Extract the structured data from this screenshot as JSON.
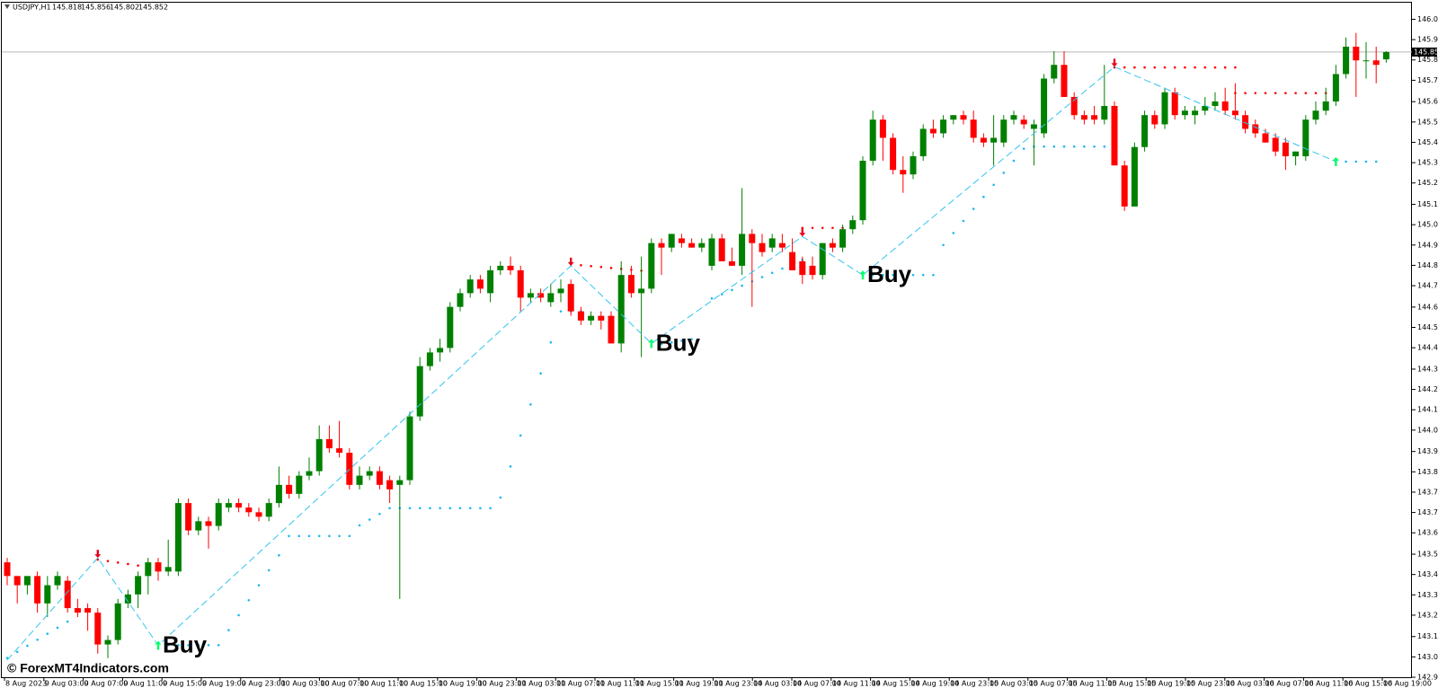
{
  "chart_data": {
    "type": "candlestick",
    "header": {
      "symbol": "USDJPY,H1",
      "ohlc": [
        145.818,
        145.856,
        145.802,
        145.852
      ]
    },
    "watermark": "© ForexMT4Indicators.com",
    "bull_color": "#008000",
    "bear_color": "#ff0000",
    "ylim": [
      142.93,
      146.07
    ],
    "yticks": [
      146.005,
      {
        "value": 145.91,
        "label": "145.910"
      },
      145.815,
      {
        "value": 145.72,
        "label": "145.720"
      },
      {
        "value": 145.62,
        "label": "145.620"
      },
      145.525,
      {
        "value": 145.43,
        "label": "145.430"
      },
      145.335,
      {
        "value": 145.24,
        "label": "145.240"
      },
      {
        "value": 145.14,
        "label": "145.140"
      },
      145.045,
      {
        "value": 144.95,
        "label": "144.950"
      },
      144.855,
      {
        "value": 144.76,
        "label": "144.760"
      },
      {
        "value": 144.66,
        "label": "144.660"
      },
      144.565,
      {
        "value": 144.47,
        "label": "144.470"
      },
      {
        "value": 144.37,
        "label": "144.370"
      },
      144.275,
      {
        "value": 144.18,
        "label": "144.180"
      },
      144.085,
      143.985,
      {
        "value": 143.89,
        "label": "143.890"
      },
      143.795,
      {
        "value": 143.7,
        "label": "143.700"
      },
      143.605,
      143.505,
      {
        "value": 143.41,
        "label": "143.410"
      },
      143.315,
      {
        "value": 143.22,
        "label": "143.220"
      },
      {
        "value": 143.12,
        "label": "143.120"
      },
      143.025,
      {
        "value": 142.93,
        "label": "142.930"
      }
    ],
    "current_price": 145.852,
    "x_labels": [
      "8 Aug 2023",
      "9 Aug 03:00",
      "9 Aug 07:00",
      "9 Aug 11:00",
      "9 Aug 15:00",
      "9 Aug 19:00",
      "9 Aug 23:00",
      "10 Aug 03:00",
      "10 Aug 07:00",
      "10 Aug 11:00",
      "10 Aug 15:00",
      "10 Aug 19:00",
      "10 Aug 23:00",
      "11 Aug 03:00",
      "11 Aug 07:00",
      "11 Aug 11:00",
      "11 Aug 15:00",
      "11 Aug 19:00",
      "11 Aug 23:00",
      "14 Aug 03:00",
      "14 Aug 07:00",
      "14 Aug 11:00",
      "14 Aug 15:00",
      "14 Aug 19:00",
      "14 Aug 23:00",
      "15 Aug 03:00",
      "15 Aug 07:00",
      "15 Aug 11:00",
      "15 Aug 15:00",
      "15 Aug 19:00",
      "15 Aug 23:00",
      "16 Aug 03:00",
      "16 Aug 07:00",
      "16 Aug 11:00",
      "16 Aug 15:00",
      "16 Aug 19:00"
    ],
    "open": [
      143.467,
      143.403,
      143.36,
      143.403,
      143.275,
      143.36,
      143.381,
      143.253,
      143.253,
      143.232,
      143.083,
      143.104,
      143.275,
      143.317,
      143.403,
      143.467,
      143.424,
      143.424,
      143.744,
      143.616,
      143.659,
      143.637,
      143.723,
      143.744,
      143.723,
      143.701,
      143.68,
      143.744,
      143.829,
      143.787,
      143.872,
      143.893,
      144.043,
      144.0,
      143.979,
      143.829,
      143.872,
      143.893,
      143.851,
      143.829,
      143.851,
      144.149,
      144.384,
      144.448,
      144.469,
      144.661,
      144.725,
      144.789,
      144.725,
      144.832,
      144.853,
      144.832,
      144.704,
      144.725,
      144.683,
      144.725,
      144.768,
      144.64,
      144.597,
      144.619,
      144.619,
      144.49,
      144.81,
      144.725,
      144.746,
      144.959,
      144.938,
      144.981,
      144.959,
      144.938,
      144.853,
      144.981,
      144.874,
      144.853,
      145.002,
      144.959,
      144.938,
      144.959,
      144.917,
      144.874,
      144.853,
      144.81,
      144.959,
      144.938,
      145.024,
      145.066,
      145.344,
      145.536,
      145.451,
      145.301,
      145.28,
      145.365,
      145.493,
      145.472,
      145.536,
      145.557,
      145.536,
      145.451,
      145.429,
      145.429,
      145.536,
      145.536,
      145.493,
      145.472,
      145.728,
      145.792,
      145.642,
      145.557,
      145.557,
      145.536,
      145.6,
      145.322,
      145.13,
      145.408,
      145.557,
      145.514,
      145.664,
      145.557,
      145.557,
      145.578,
      145.6,
      145.621,
      145.578,
      145.557,
      145.514,
      145.472,
      145.451,
      145.429,
      145.365,
      145.365,
      145.536,
      145.578,
      145.621,
      145.749,
      145.877,
      145.813,
      145.813,
      145.818
    ],
    "high": [
      143.488,
      143.403,
      143.403,
      143.424,
      143.403,
      143.424,
      143.403,
      143.296,
      143.275,
      143.253,
      143.125,
      143.296,
      143.339,
      143.424,
      143.488,
      143.488,
      143.573,
      143.765,
      143.765,
      143.68,
      143.68,
      143.765,
      143.765,
      143.765,
      143.744,
      143.723,
      143.765,
      143.915,
      143.872,
      143.893,
      143.957,
      144.107,
      144.107,
      144.128,
      144.0,
      143.915,
      143.915,
      143.915,
      143.872,
      143.872,
      144.171,
      144.426,
      144.469,
      144.512,
      144.683,
      144.746,
      144.81,
      144.81,
      144.853,
      144.874,
      144.896,
      144.853,
      144.746,
      144.746,
      144.768,
      144.789,
      144.789,
      144.661,
      144.64,
      144.64,
      144.64,
      144.874,
      144.853,
      144.896,
      144.981,
      144.981,
      145.002,
      145.002,
      144.981,
      144.981,
      145.002,
      145.002,
      144.938,
      145.216,
      145.024,
      145.002,
      145.002,
      145.002,
      144.981,
      144.896,
      144.896,
      144.959,
      144.981,
      145.045,
      145.088,
      145.365,
      145.578,
      145.557,
      145.472,
      145.365,
      145.387,
      145.514,
      145.536,
      145.557,
      145.557,
      145.578,
      145.578,
      145.472,
      145.557,
      145.557,
      145.578,
      145.557,
      145.536,
      145.749,
      145.856,
      145.856,
      145.664,
      145.578,
      145.6,
      145.792,
      145.621,
      145.344,
      145.429,
      145.578,
      145.578,
      145.685,
      145.685,
      145.6,
      145.6,
      145.642,
      145.664,
      145.685,
      145.706,
      145.578,
      145.536,
      145.493,
      145.472,
      145.451,
      145.387,
      145.557,
      145.621,
      145.685,
      145.792,
      145.92,
      145.941,
      145.898,
      145.877,
      145.856
    ],
    "low": [
      143.36,
      143.275,
      143.317,
      143.232,
      143.211,
      143.339,
      143.232,
      143.211,
      143.147,
      143.04,
      143.019,
      143.083,
      143.253,
      143.253,
      143.317,
      143.381,
      143.403,
      143.403,
      143.594,
      143.594,
      143.531,
      143.616,
      143.701,
      143.701,
      143.68,
      143.659,
      143.659,
      143.723,
      143.765,
      143.765,
      143.851,
      143.872,
      143.979,
      143.957,
      143.808,
      143.808,
      143.851,
      143.808,
      143.744,
      143.296,
      143.829,
      144.128,
      144.363,
      144.405,
      144.448,
      144.64,
      144.704,
      144.725,
      144.683,
      144.81,
      144.81,
      144.64,
      144.683,
      144.683,
      144.661,
      144.683,
      144.619,
      144.576,
      144.576,
      144.555,
      144.49,
      144.448,
      144.704,
      144.426,
      144.725,
      144.81,
      144.917,
      144.938,
      144.938,
      144.917,
      144.832,
      144.874,
      144.853,
      144.81,
      144.661,
      144.896,
      144.917,
      144.917,
      144.832,
      144.768,
      144.789,
      144.789,
      144.917,
      144.917,
      145.002,
      145.045,
      145.322,
      145.344,
      145.28,
      145.194,
      145.258,
      145.344,
      145.451,
      145.451,
      145.514,
      145.514,
      145.429,
      145.408,
      145.322,
      145.408,
      145.514,
      145.493,
      145.322,
      145.451,
      145.706,
      145.642,
      145.536,
      145.514,
      145.514,
      145.514,
      145.322,
      145.109,
      145.13,
      145.387,
      145.493,
      145.493,
      145.536,
      145.536,
      145.514,
      145.557,
      145.578,
      145.557,
      145.536,
      145.472,
      145.451,
      145.429,
      145.365,
      145.301,
      145.322,
      145.344,
      145.514,
      145.557,
      145.6,
      145.728,
      145.642,
      145.728,
      145.706,
      145.802
    ],
    "close": [
      143.403,
      143.36,
      143.403,
      143.275,
      143.36,
      143.403,
      143.253,
      143.232,
      143.232,
      143.083,
      143.104,
      143.275,
      143.317,
      143.403,
      143.467,
      143.424,
      143.445,
      143.744,
      143.616,
      143.659,
      143.637,
      143.744,
      143.744,
      143.723,
      143.701,
      143.68,
      143.744,
      143.829,
      143.787,
      143.872,
      143.893,
      144.043,
      144.0,
      143.979,
      143.829,
      143.872,
      143.893,
      143.829,
      143.808,
      143.851,
      144.149,
      144.384,
      144.448,
      144.469,
      144.661,
      144.725,
      144.789,
      144.746,
      144.832,
      144.853,
      144.832,
      144.704,
      144.725,
      144.704,
      144.725,
      144.746,
      144.64,
      144.597,
      144.619,
      144.597,
      144.49,
      144.81,
      144.725,
      144.746,
      144.959,
      144.938,
      145.002,
      144.959,
      144.938,
      144.959,
      144.981,
      144.874,
      144.853,
      145.002,
      144.959,
      144.917,
      144.981,
      144.938,
      144.832,
      144.81,
      144.81,
      144.959,
      144.938,
      145.024,
      145.066,
      145.344,
      145.536,
      145.451,
      145.301,
      145.28,
      145.365,
      145.493,
      145.472,
      145.536,
      145.557,
      145.536,
      145.451,
      145.429,
      145.451,
      145.536,
      145.557,
      145.514,
      145.514,
      145.728,
      145.792,
      145.642,
      145.557,
      145.536,
      145.536,
      145.6,
      145.322,
      145.13,
      145.408,
      145.557,
      145.514,
      145.664,
      145.557,
      145.578,
      145.578,
      145.6,
      145.621,
      145.578,
      145.557,
      145.493,
      145.472,
      145.429,
      145.387,
      145.365,
      145.387,
      145.536,
      145.578,
      145.621,
      145.749,
      145.877,
      145.813,
      145.813,
      145.792,
      145.852
    ],
    "zigzag": {
      "color": "#33c4f0",
      "index": [
        0,
        9,
        15,
        56,
        64,
        79,
        85,
        110,
        132
      ],
      "values": [
        143.01,
        143.488,
        143.079,
        144.853,
        144.49,
        144.99,
        144.81,
        145.783,
        145.34
      ]
    },
    "arrow_up_color": "#00ff66",
    "arrow_down_color": "#e8001c",
    "buy_labels": [
      "Buy",
      "Buy",
      "Buy"
    ],
    "resistance": {
      "color": "#ff0000",
      "segments": [
        {
          "from": 9,
          "to": 14,
          "start": 143.48,
          "end": 143.445
        },
        {
          "from": 56,
          "to": 63,
          "start": 144.86,
          "end": 144.83
        },
        {
          "from": 79,
          "to": 84,
          "start": 145.03,
          "end": 145.03
        },
        {
          "from": 110,
          "to": 122,
          "start": 145.78,
          "end": 145.78
        },
        {
          "from": 122,
          "to": 131,
          "start": 145.66,
          "end": 145.66
        }
      ]
    },
    "support": {
      "color": "#1fb8f0",
      "segments": [
        {
          "from": 0,
          "to": 6,
          "start": 143.02,
          "end": 143.19
        },
        {
          "from": 16,
          "to": 21,
          "start": 143.08,
          "end": 143.08
        },
        {
          "from": 22,
          "to": 27,
          "start": 143.15,
          "end": 143.5
        },
        {
          "from": 28,
          "to": 34,
          "start": 143.59,
          "end": 143.59
        },
        {
          "from": 35,
          "to": 38,
          "start": 143.64,
          "end": 143.72
        },
        {
          "from": 39,
          "to": 48,
          "start": 143.72,
          "end": 143.72
        },
        {
          "from": 49,
          "to": 55,
          "start": 143.77,
          "end": 144.64
        },
        {
          "from": 56,
          "to": 57,
          "start": 144.64,
          "end": 144.64
        },
        {
          "from": 64,
          "to": 68,
          "start": 144.48,
          "end": 144.51
        },
        {
          "from": 70,
          "to": 79,
          "start": 144.7,
          "end": 144.88
        },
        {
          "from": 85,
          "to": 92,
          "start": 144.81,
          "end": 144.81
        },
        {
          "from": 93,
          "to": 101,
          "start": 144.95,
          "end": 145.4
        },
        {
          "from": 102,
          "to": 109,
          "start": 145.41,
          "end": 145.41
        },
        {
          "from": 132,
          "to": 136,
          "start": 145.34,
          "end": 145.34
        }
      ]
    }
  }
}
